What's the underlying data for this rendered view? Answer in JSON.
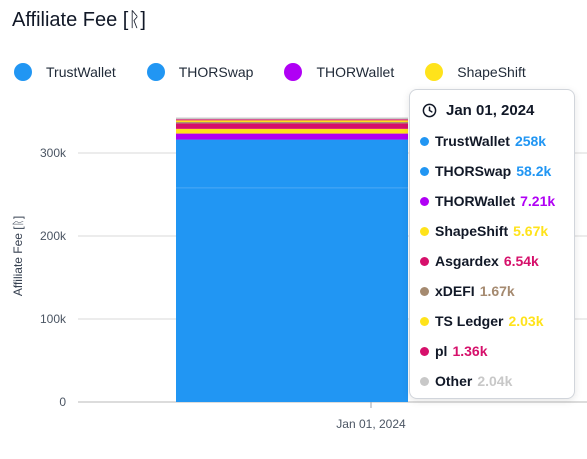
{
  "header": {
    "title": "Affiliate Fee [ᚱ]"
  },
  "legend": [
    {
      "label": "TrustWallet",
      "color": "#2196F3"
    },
    {
      "label": "THORSwap",
      "color": "#2196F3"
    },
    {
      "label": "THORWallet",
      "color": "#B000F5"
    },
    {
      "label": "ShapeShift",
      "color": "#FFE31B"
    }
  ],
  "tooltip": {
    "date": "Jan 01, 2024",
    "clock_icon": "clock-icon",
    "rows": [
      {
        "name": "TrustWallet",
        "value": "258k",
        "color": "#2196F3"
      },
      {
        "name": "THORSwap",
        "value": "58.2k",
        "color": "#2196F3"
      },
      {
        "name": "THORWallet",
        "value": "7.21k",
        "color": "#B000F5"
      },
      {
        "name": "ShapeShift",
        "value": "5.67k",
        "color": "#FFE31B"
      },
      {
        "name": "Asgardex",
        "value": "6.54k",
        "color": "#D6106B"
      },
      {
        "name": "xDEFI",
        "value": "1.67k",
        "color": "#A58A70"
      },
      {
        "name": "TS Ledger",
        "value": "2.03k",
        "color": "#FFE31B"
      },
      {
        "name": "pl",
        "value": "1.36k",
        "color": "#D6106B"
      },
      {
        "name": "Other",
        "value": "2.04k",
        "color": "#C8C8C8"
      }
    ]
  },
  "chart_data": {
    "type": "bar",
    "stacked": true,
    "categories": [
      "Jan 01, 2024"
    ],
    "ylabel": "Affiliate Fee [ᚱ]",
    "xlabel": "",
    "ylim": [
      0,
      340000
    ],
    "yticks": [
      0,
      100000,
      200000,
      300000
    ],
    "ytick_labels": [
      "0",
      "100k",
      "200k",
      "300k"
    ],
    "grid": true,
    "series": [
      {
        "name": "TrustWallet",
        "values": [
          258000
        ],
        "color": "#2196F3"
      },
      {
        "name": "THORSwap",
        "values": [
          58200
        ],
        "color": "#2196F3"
      },
      {
        "name": "THORWallet",
        "values": [
          7210
        ],
        "color": "#B000F5"
      },
      {
        "name": "ShapeShift",
        "values": [
          5670
        ],
        "color": "#FFE31B"
      },
      {
        "name": "Asgardex",
        "values": [
          6540
        ],
        "color": "#D6106B"
      },
      {
        "name": "xDEFI",
        "values": [
          1670
        ],
        "color": "#A58A70"
      },
      {
        "name": "TS Ledger",
        "values": [
          2030
        ],
        "color": "#FFE31B"
      },
      {
        "name": "pl",
        "values": [
          1360
        ],
        "color": "#D6106B"
      },
      {
        "name": "Other",
        "values": [
          2040
        ],
        "color": "#C8C8C8"
      }
    ]
  }
}
